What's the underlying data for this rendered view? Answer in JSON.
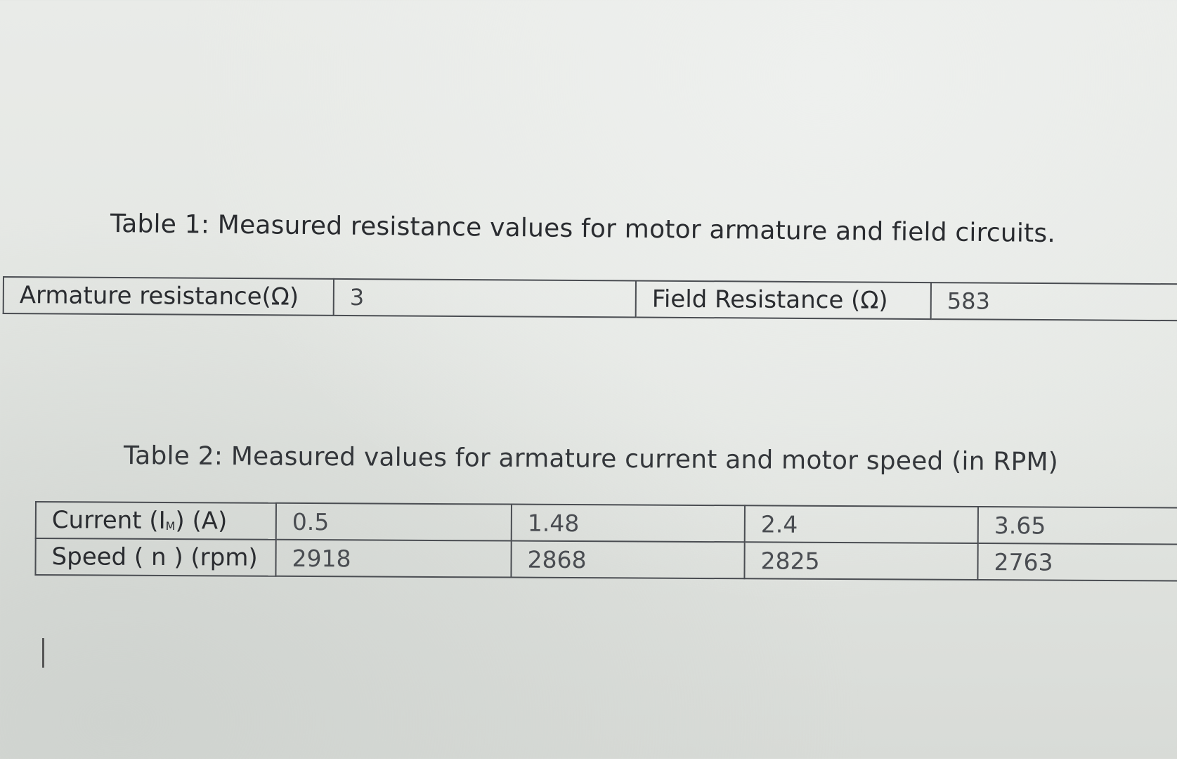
{
  "table1": {
    "caption": "Table 1: Measured resistance values for motor armature and field circuits.",
    "armature_label": "Armature resistance(Ω)",
    "armature_value": "3",
    "field_label": "Field Resistance (Ω)",
    "field_value": "583"
  },
  "table2": {
    "caption": "Table 2: Measured values for armature current and motor speed (in RPM)",
    "current_label_prefix": "Current (I",
    "current_label_sub": "M",
    "current_label_suffix": ") (A)",
    "speed_label": "Speed ( n ) (rpm)",
    "currents": [
      "0.5",
      "1.48",
      "2.4",
      "3.65"
    ],
    "speeds": [
      "2918",
      "2868",
      "2825",
      "2763"
    ]
  }
}
